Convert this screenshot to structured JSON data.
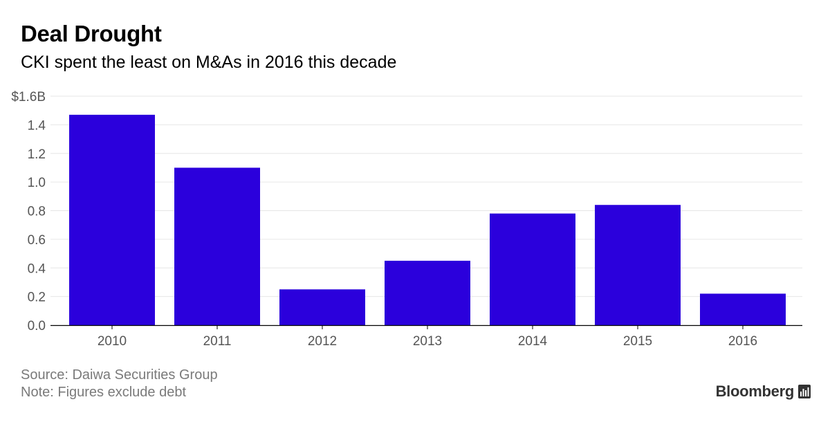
{
  "title": "Deal Drought",
  "subtitle": "CKI spent the least on M&As in 2016 this decade",
  "footer": {
    "source": "Source: Daiwa Securities Group",
    "note": "Note: Figures exclude debt",
    "brand": "Bloomberg",
    "brand_icon": "bar-chart-icon"
  },
  "colors": {
    "bar": "#2b00dc",
    "grid": "#e6e6e6",
    "axis": "#000000",
    "tick_text": "#555555"
  },
  "chart_data": {
    "type": "bar",
    "title": "Deal Drought",
    "subtitle": "CKI spent the least on M&As in 2016 this decade",
    "xlabel": "",
    "ylabel": "",
    "categories": [
      "2010",
      "2011",
      "2012",
      "2013",
      "2014",
      "2015",
      "2016"
    ],
    "values": [
      1.47,
      1.1,
      0.25,
      0.45,
      0.78,
      0.84,
      0.22
    ],
    "ylim": [
      0,
      1.6
    ],
    "yticks": [
      0,
      0.2,
      0.4,
      0.6,
      0.8,
      1.0,
      1.2,
      1.4,
      1.6
    ],
    "ytick_labels": [
      "0.0",
      "0.2",
      "0.4",
      "0.6",
      "0.8",
      "1.0",
      "1.2",
      "1.4",
      "$1.6B"
    ],
    "grid": true,
    "legend": "none"
  }
}
